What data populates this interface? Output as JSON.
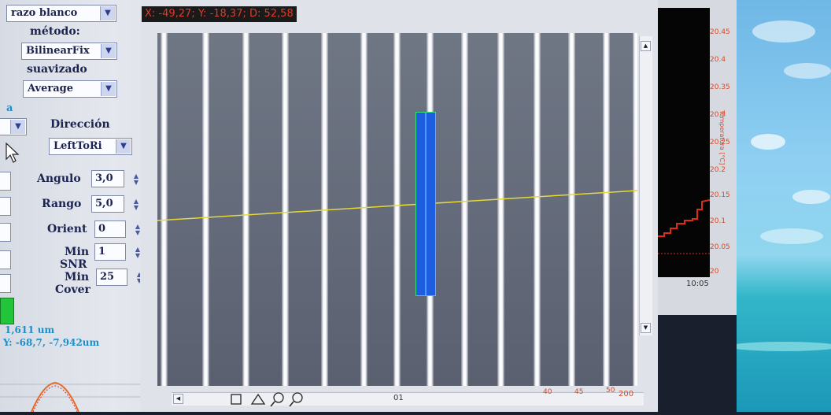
{
  "left_panel": {
    "trazo_label": "razo blanco",
    "metodo_label": "método:",
    "metodo_value": "BilinearFix",
    "suavizado_label": "suavizado",
    "suavizado_value": "Average",
    "partial_label_a": "a",
    "direccion_label": "Dirección",
    "direccion_value": "LeftToRi",
    "angulo_label": "Angulo",
    "angulo_value": "3,0",
    "rango_label": "Rango",
    "rango_value": "5,0",
    "orient_label": "Orient",
    "orient_value": "0",
    "min_snr_label_1": "Min",
    "min_snr_label_2": "SNR",
    "min_snr_value": "1",
    "min_cover_label_1": "Min",
    "min_cover_label_2": "Cover",
    "min_cover_value": "25",
    "measure_1": "1,611 um",
    "measure_2": "Y: -68,7, -7,942um"
  },
  "viewer": {
    "coord_readout": "X: -49,27; Y: -18,37; D: 52,58",
    "bottom_label": "01"
  },
  "chart": {
    "y_ticks": [
      "20.45",
      "20.4",
      "20.35",
      "20.3",
      "20.25",
      "20.2",
      "20.15",
      "20.1",
      "20.05",
      "20"
    ],
    "x_tick": "10:05",
    "y_axis_label": "Temperatura [°C]",
    "bottom_scale": [
      "40",
      "45",
      "50",
      "200"
    ]
  },
  "colors": {
    "coord_text": "#e23a2a",
    "roi_fill": "#1d5de0",
    "roi_border": "#39e07a",
    "scan_line": "#e6d93a",
    "chart_line": "#e02a1a"
  }
}
